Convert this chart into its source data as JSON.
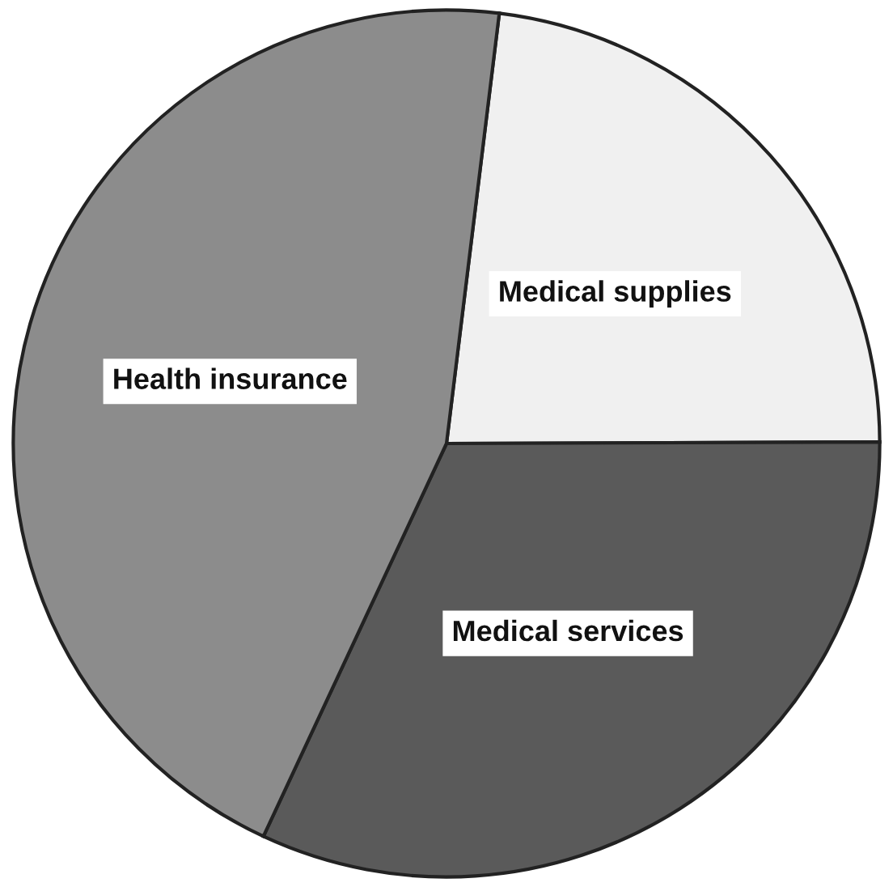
{
  "chart_data": {
    "type": "pie",
    "categories": [
      "Medical supplies",
      "Medical services",
      "Health insurance"
    ],
    "values": [
      23,
      32,
      45
    ],
    "colors": [
      "#f0f0f0",
      "#5a5a5a",
      "#8c8c8c"
    ]
  }
}
